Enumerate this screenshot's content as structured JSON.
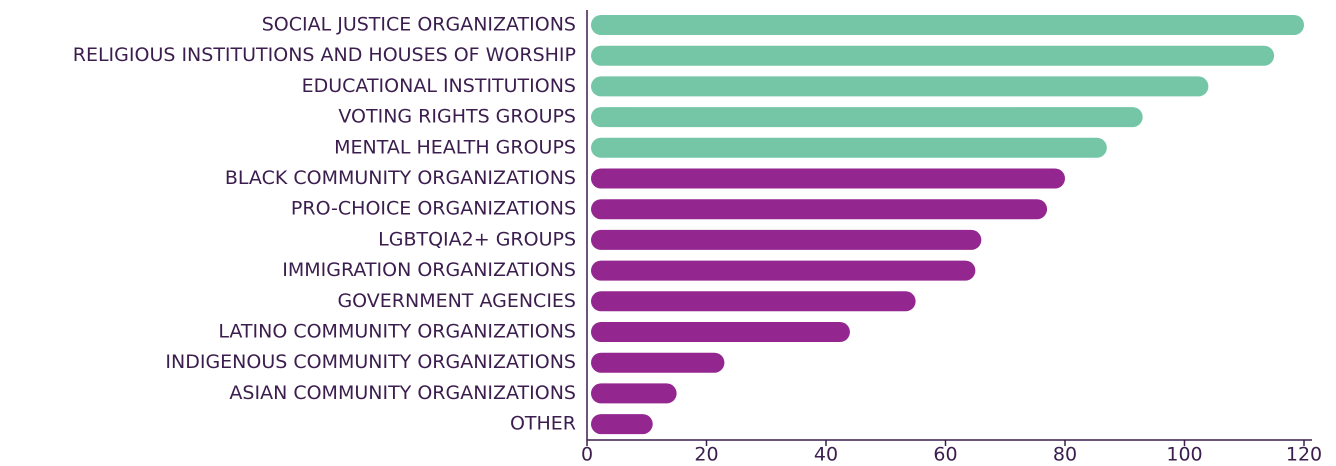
{
  "chart_data": {
    "type": "bar",
    "orientation": "horizontal",
    "categories": [
      "SOCIAL JUSTICE ORGANIZATIONS",
      "RELIGIOUS INSTITUTIONS AND HOUSES OF WORSHIP",
      "EDUCATIONAL INSTITUTIONS",
      "VOTING RIGHTS GROUPS",
      "MENTAL HEALTH GROUPS",
      "BLACK COMMUNITY ORGANIZATIONS",
      "PRO-CHOICE ORGANIZATIONS",
      "LGBTQIA2+ GROUPS",
      "IMMIGRATION ORGANIZATIONS",
      "GOVERNMENT AGENCIES",
      "LATINO COMMUNITY ORGANIZATIONS",
      "INDIGENOUS COMMUNITY ORGANIZATIONS",
      "ASIAN COMMUNITY ORGANIZATIONS",
      "OTHER"
    ],
    "values": [
      120,
      115,
      104,
      93,
      87,
      80,
      77,
      66,
      65,
      55,
      44,
      23,
      15,
      11
    ],
    "colors": [
      "#74c6a6",
      "#74c6a6",
      "#74c6a6",
      "#74c6a6",
      "#74c6a6",
      "#93278f",
      "#93278f",
      "#93278f",
      "#93278f",
      "#93278f",
      "#93278f",
      "#93278f",
      "#93278f",
      "#93278f"
    ],
    "xlim": [
      0,
      120
    ],
    "xticks": [
      0,
      20,
      40,
      60,
      80,
      100,
      120
    ],
    "grid": false
  }
}
